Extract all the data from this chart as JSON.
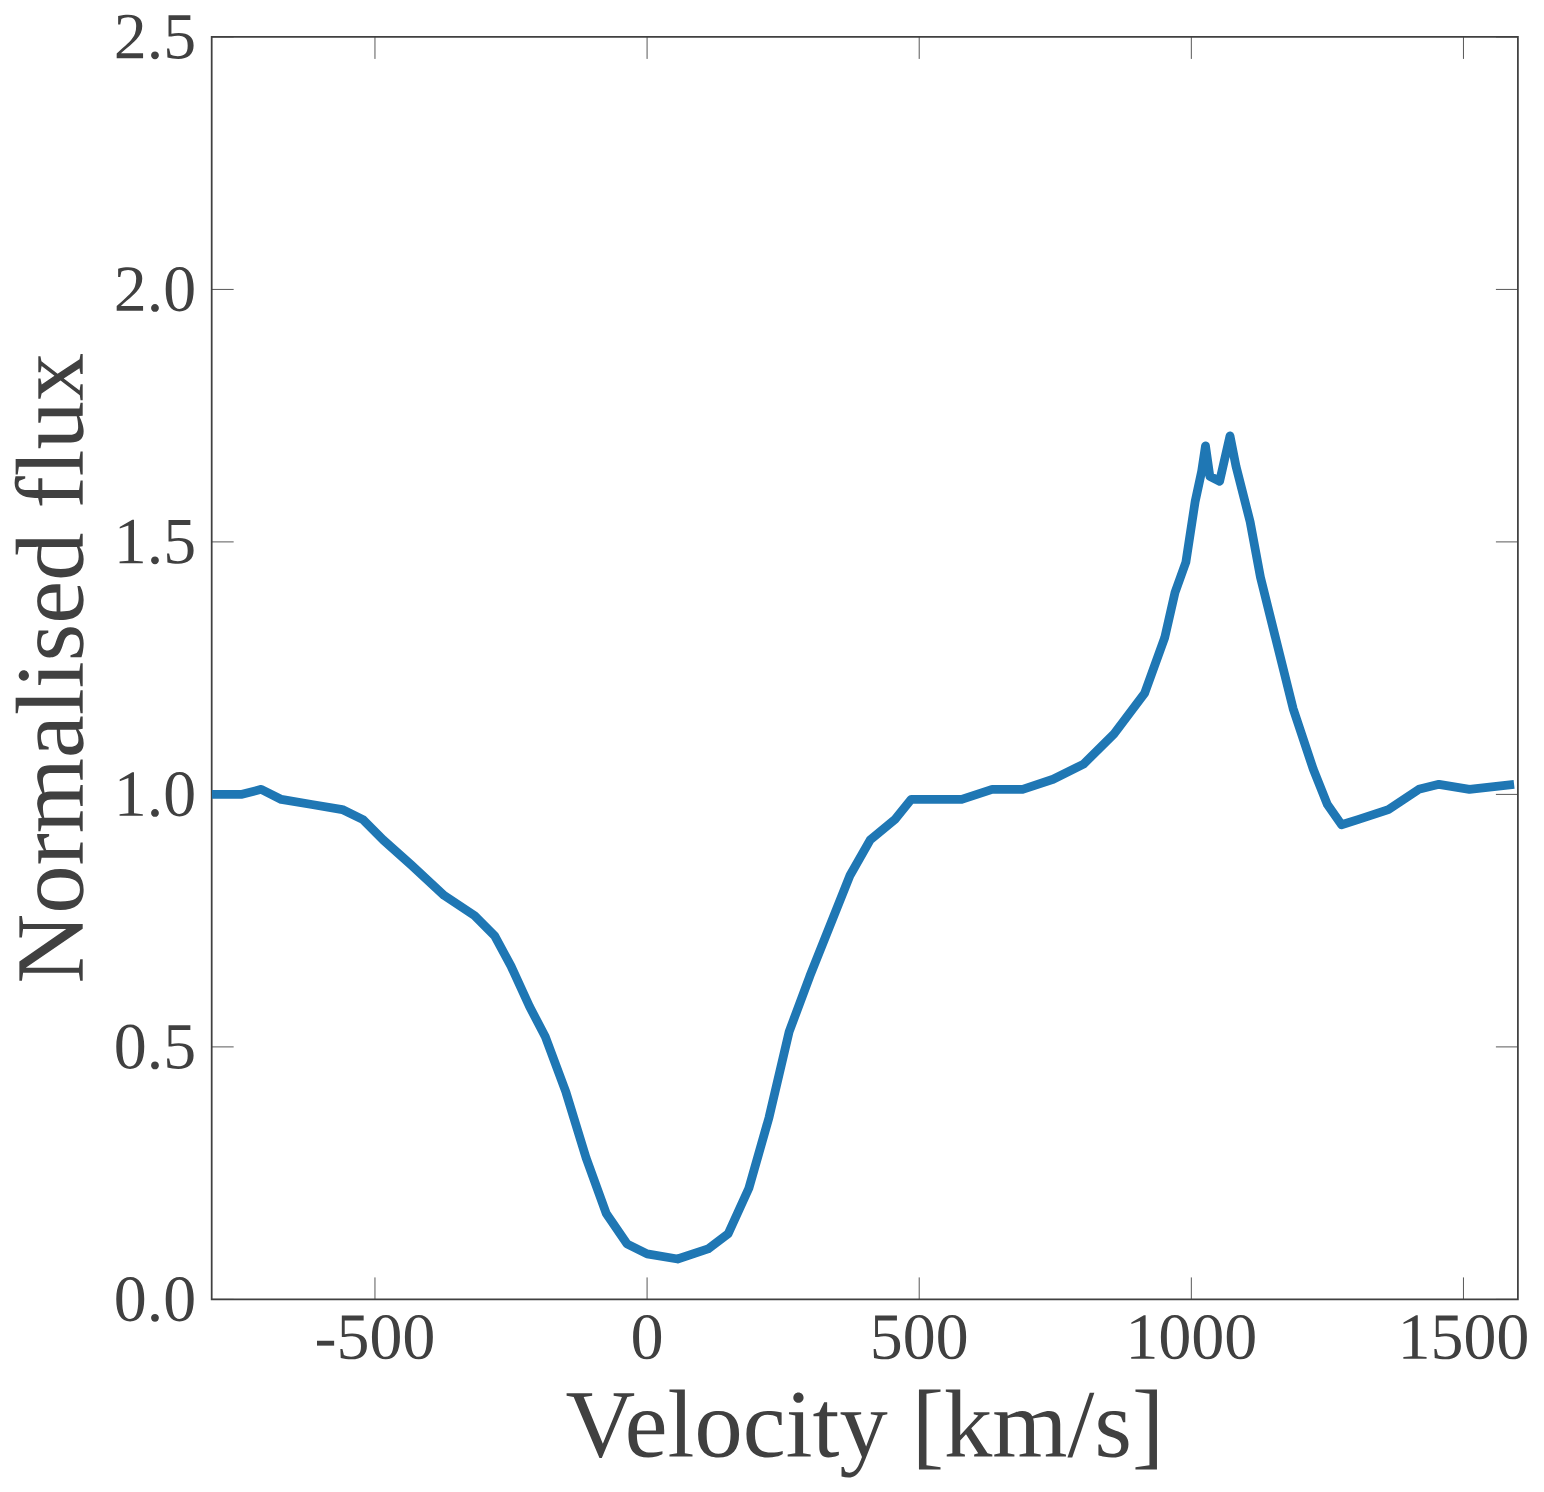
{
  "chart_data": {
    "type": "line",
    "xlabel": "Velocity [km/s]",
    "ylabel": "Normalised flux",
    "xlim": [
      -800,
      1600
    ],
    "ylim": [
      0,
      2.5
    ],
    "xticks": [
      -500,
      0,
      500,
      1000,
      1500
    ],
    "yticks": [
      {
        "value": 0,
        "label": "0.0"
      },
      {
        "value": 0.5,
        "label": "0.5"
      },
      {
        "value": 1,
        "label": "1.0"
      },
      {
        "value": 1.5,
        "label": "1.5"
      },
      {
        "value": 2,
        "label": "2.0"
      },
      {
        "value": 2.5,
        "label": "2.5"
      }
    ],
    "marker": "none",
    "line_style": "solid",
    "series": [
      {
        "color": "#1f77b4",
        "x": [
          -800,
          -746,
          -709,
          -672,
          -616,
          -560,
          -522,
          -485,
          -433,
          -373,
          -317,
          -280,
          -250,
          -216,
          -187,
          -149,
          -112,
          -75,
          -37,
          0,
          56,
          112,
          149,
          187,
          224,
          261,
          299,
          336,
          373,
          410,
          455,
          485,
          522,
          578,
          634,
          690,
          746,
          802,
          858,
          914,
          951,
          970,
          990,
          1007,
          1019,
          1026,
          1034,
          1052,
          1071,
          1082,
          1108,
          1127,
          1157,
          1187,
          1224,
          1250,
          1276,
          1306,
          1362,
          1418,
          1455,
          1511,
          1593
        ],
        "values": [
          1.0,
          1.0,
          1.01,
          0.99,
          0.98,
          0.97,
          0.95,
          0.91,
          0.86,
          0.8,
          0.76,
          0.72,
          0.66,
          0.58,
          0.52,
          0.41,
          0.28,
          0.17,
          0.11,
          0.09,
          0.08,
          0.1,
          0.13,
          0.22,
          0.36,
          0.53,
          0.64,
          0.74,
          0.84,
          0.91,
          0.95,
          0.99,
          0.99,
          0.99,
          1.01,
          1.01,
          1.03,
          1.06,
          1.12,
          1.2,
          1.31,
          1.4,
          1.46,
          1.58,
          1.64,
          1.69,
          1.63,
          1.62,
          1.71,
          1.65,
          1.54,
          1.43,
          1.3,
          1.17,
          1.05,
          0.98,
          0.94,
          0.95,
          0.97,
          1.01,
          1.02,
          1.01,
          1.02
        ]
      }
    ]
  }
}
